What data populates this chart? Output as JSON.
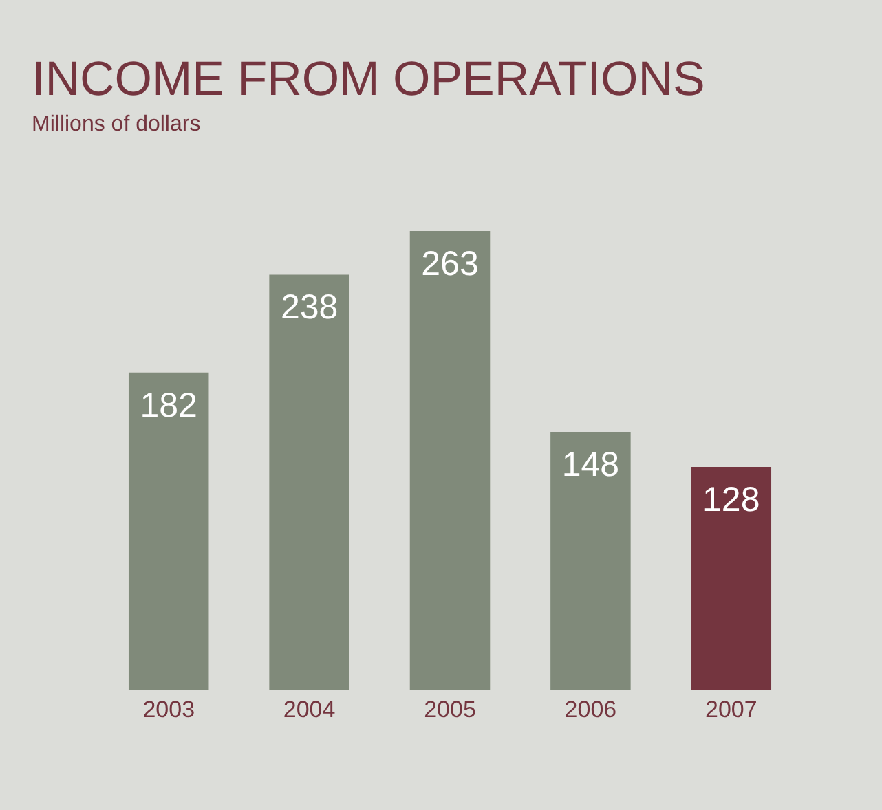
{
  "chart_data": {
    "type": "bar",
    "title": "INCOME FROM OPERATIONS",
    "subtitle": "Millions of dollars",
    "categories": [
      "2003",
      "2004",
      "2005",
      "2006",
      "2007"
    ],
    "values": [
      182,
      238,
      263,
      148,
      128
    ],
    "colors": [
      "#808a7a",
      "#808a7a",
      "#808a7a",
      "#808a7a",
      "#74353f"
    ],
    "data_labels": true
  }
}
